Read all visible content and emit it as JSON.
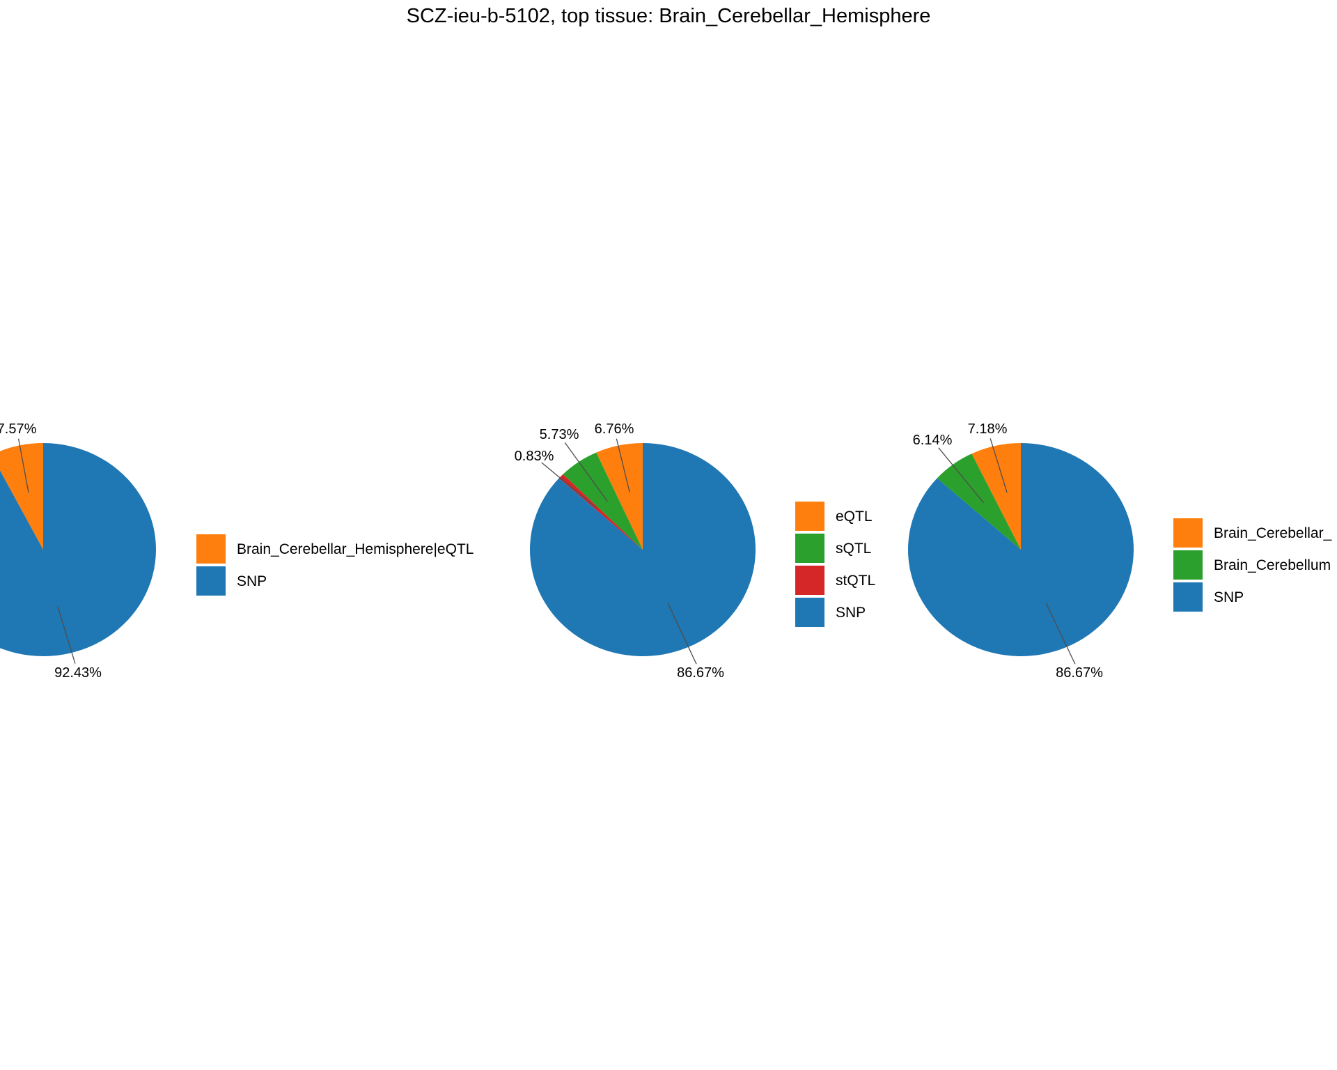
{
  "title": "SCZ-ieu-b-5102, top tissue: Brain_Cerebellar_Hemisphere",
  "colors": {
    "orange": "#ff7f0e",
    "green": "#2ca02c",
    "red": "#d62728",
    "blue": "#1f77b4"
  },
  "chart_data": [
    {
      "type": "pie",
      "start_angle": "12 o'clock",
      "direction": "counterclockwise",
      "slices": [
        {
          "label": "Brain_Cerebellar_Hemisphere|eQTL",
          "value": 7.57,
          "pct_label": "7.57%",
          "color": "#ff7f0e"
        },
        {
          "label": "SNP",
          "value": 92.43,
          "pct_label": "92.43%",
          "color": "#1f77b4"
        }
      ],
      "legend": [
        "Brain_Cerebellar_Hemisphere|eQTL",
        "SNP"
      ],
      "legend_position": "right"
    },
    {
      "type": "pie",
      "start_angle": "12 o'clock",
      "direction": "counterclockwise",
      "slices": [
        {
          "label": "eQTL",
          "value": 6.76,
          "pct_label": "6.76%",
          "color": "#ff7f0e"
        },
        {
          "label": "sQTL",
          "value": 5.73,
          "pct_label": "5.73%",
          "color": "#2ca02c"
        },
        {
          "label": "stQTL",
          "value": 0.83,
          "pct_label": "0.83%",
          "color": "#d62728"
        },
        {
          "label": "SNP",
          "value": 86.67,
          "pct_label": "86.67%",
          "color": "#1f77b4"
        }
      ],
      "legend": [
        "eQTL",
        "sQTL",
        "stQTL",
        "SNP"
      ],
      "legend_position": "right"
    },
    {
      "type": "pie",
      "start_angle": "12 o'clock",
      "direction": "counterclockwise",
      "slices": [
        {
          "label": "Brain_Cerebellar_",
          "value": 7.18,
          "pct_label": "7.18%",
          "color": "#ff7f0e"
        },
        {
          "label": "Brain_Cerebellum",
          "value": 6.14,
          "pct_label": "6.14%",
          "color": "#2ca02c"
        },
        {
          "label": "SNP",
          "value": 86.67,
          "pct_label": "86.67%",
          "color": "#1f77b4"
        }
      ],
      "legend": [
        "Brain_Cerebellar_",
        "Brain_Cerebellum",
        "SNP"
      ],
      "legend_position": "right"
    }
  ]
}
